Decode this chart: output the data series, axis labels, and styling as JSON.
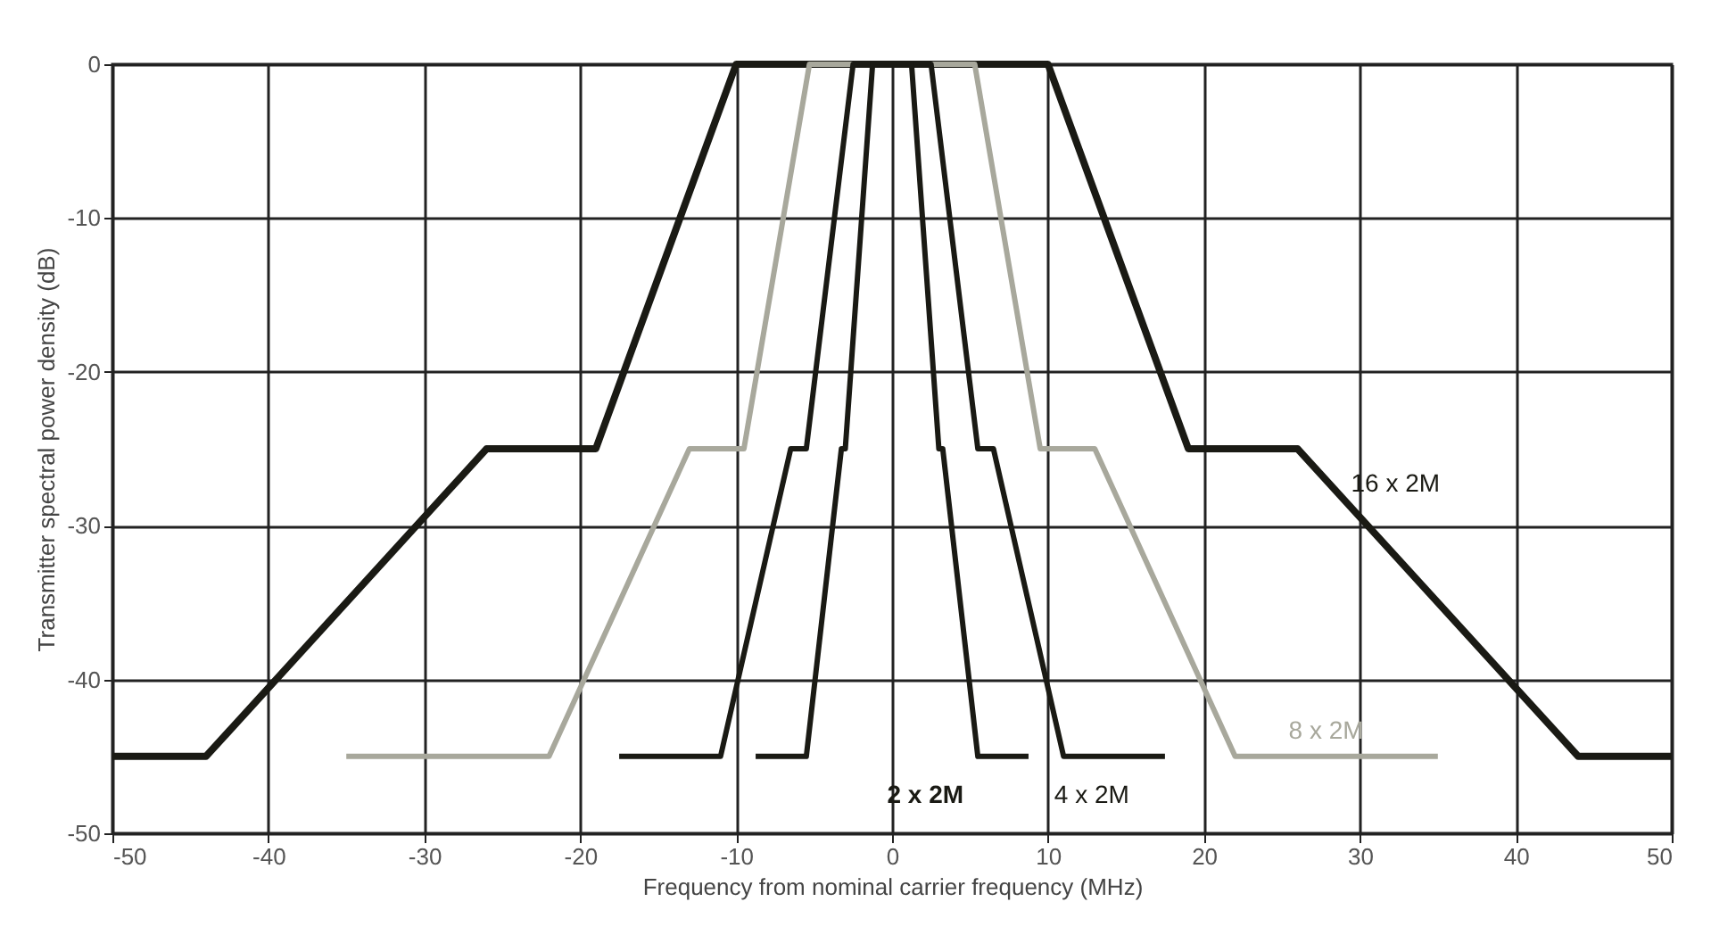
{
  "chart_data": {
    "type": "line",
    "xlabel": "Frequency from nominal carrier frequency (MHz)",
    "ylabel": "Transmitter spectral power density (dB)",
    "xlim": [
      -50,
      50
    ],
    "xticks": [
      -50,
      -40,
      -30,
      -20,
      -10,
      0,
      10,
      20,
      30,
      40,
      50
    ],
    "ylim": [
      -50,
      0
    ],
    "yticks": [
      -50,
      -40,
      -30,
      -20,
      -10,
      0
    ],
    "grid": true,
    "marker": "none",
    "line_style": "solid",
    "series": [
      {
        "name": "16 x 2M",
        "color": "#1a1a14",
        "x": [
          -50,
          -44,
          -26,
          -19,
          -10,
          10,
          19,
          26,
          44,
          50
        ],
        "values": [
          -45,
          -45,
          -25,
          -25,
          0,
          0,
          -25,
          -25,
          -45,
          -45
        ]
      },
      {
        "name": "8 x 2M",
        "color": "#a8a89c",
        "x": [
          -35,
          -22,
          -13,
          -9.5,
          -5.3,
          5.3,
          9.5,
          13,
          22,
          35
        ],
        "values": [
          -45,
          -45,
          -25,
          -25,
          0,
          0,
          -25,
          -25,
          -45,
          -45
        ]
      },
      {
        "name": "4 x 2M",
        "color": "#1a1a14",
        "x": [
          -17.5,
          -11,
          -6.5,
          -5.5,
          -2.5,
          2.5,
          5.5,
          6.5,
          11,
          17.5
        ],
        "values": [
          -45,
          -45,
          -25,
          -25,
          0,
          0,
          -25,
          -25,
          -45,
          -45
        ]
      },
      {
        "name": "2 x 2M",
        "color": "#1a1a14",
        "x": [
          -8.75,
          -5.5,
          -3.25,
          -3,
          -1.25,
          1.25,
          3,
          3.25,
          5.5,
          8.75
        ],
        "values": [
          -45,
          -45,
          -25,
          -25,
          0,
          0,
          -25,
          -25,
          -45,
          -45
        ]
      }
    ]
  }
}
